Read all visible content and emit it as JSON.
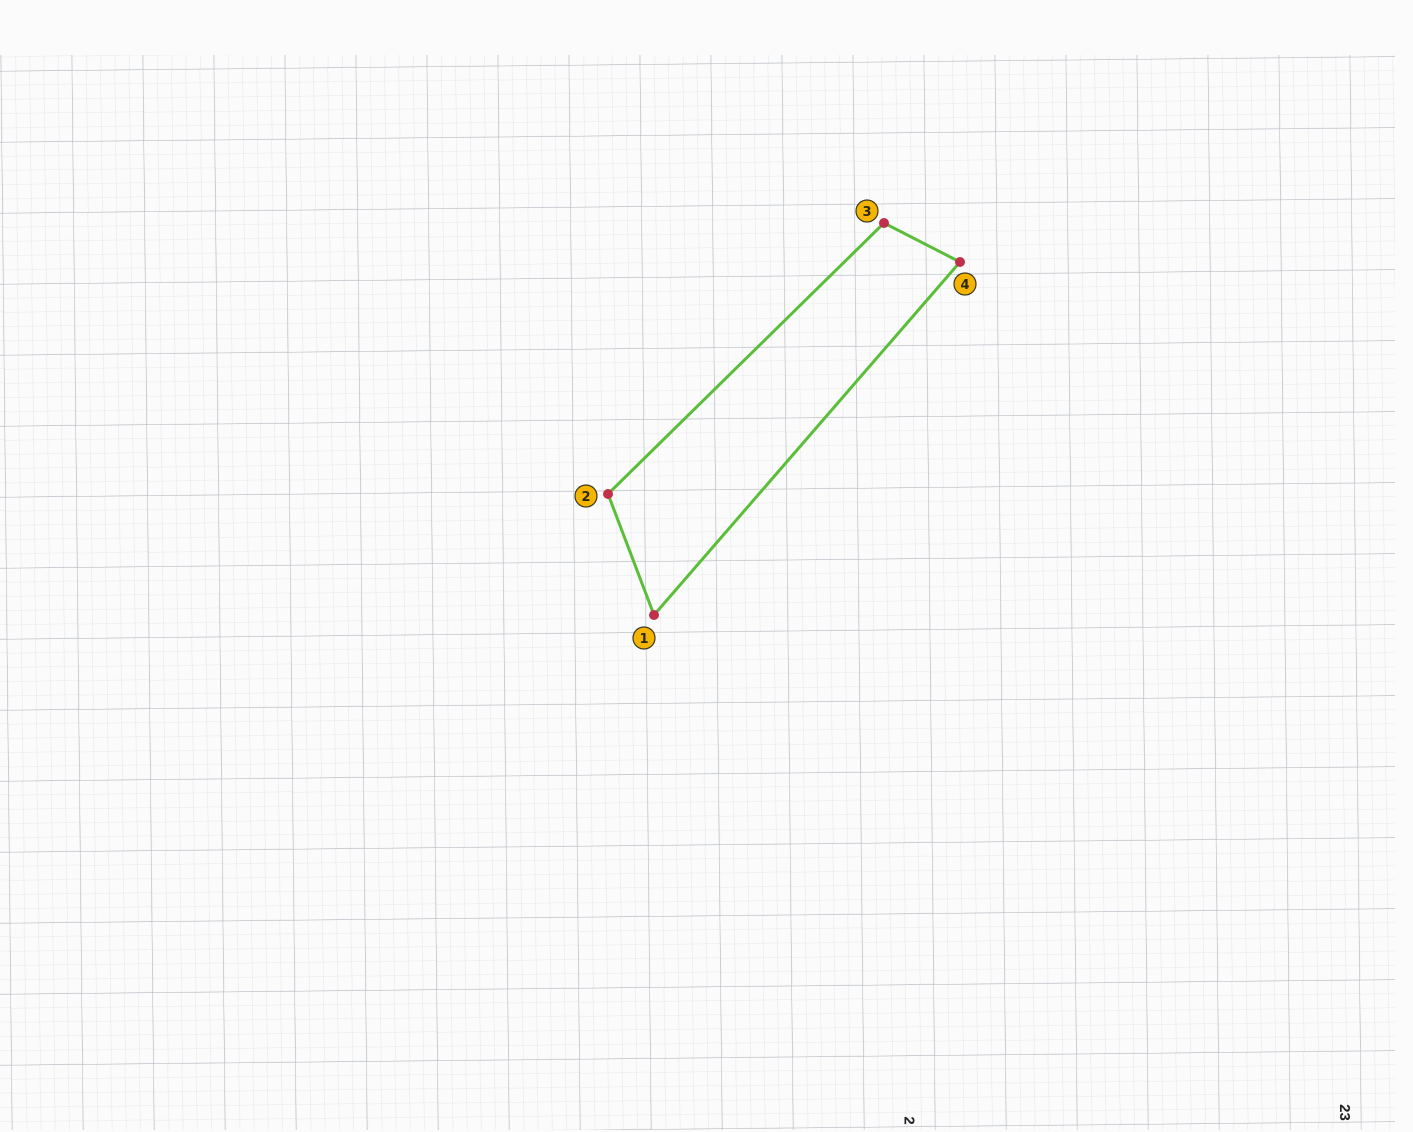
{
  "sheet": {
    "paper_color": "#fbfbfb",
    "minor_grid_color": "#c8ccd2",
    "major_grid_color": "#a8adb5",
    "edge_labels": [
      "2",
      "23"
    ]
  },
  "polygon": {
    "line_color": "#5bbd3a",
    "point_color": "#c0304a",
    "marker_fill": "#f5b400",
    "points": [
      {
        "label": "1",
        "data_name": "point-1"
      },
      {
        "label": "2",
        "data_name": "point-2"
      },
      {
        "label": "3",
        "data_name": "point-3"
      },
      {
        "label": "4",
        "data_name": "point-4"
      }
    ]
  }
}
